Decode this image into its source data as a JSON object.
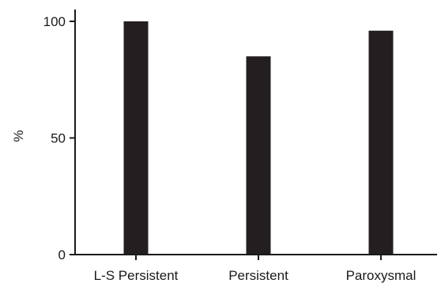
{
  "chart_data": {
    "type": "bar",
    "title": "",
    "xlabel": "",
    "ylabel": "%",
    "categories": [
      "L-S Persistent",
      "Persistent",
      "Paroxysmal"
    ],
    "values": [
      100,
      85,
      96
    ],
    "ylim": [
      0,
      100
    ],
    "yticks": [
      0,
      50,
      100
    ],
    "ytick_labels": [
      "0",
      "50",
      "100"
    ],
    "grid": false,
    "legend": "none",
    "bar_color": "#231f20",
    "axis_color": "#1a1a1a"
  }
}
